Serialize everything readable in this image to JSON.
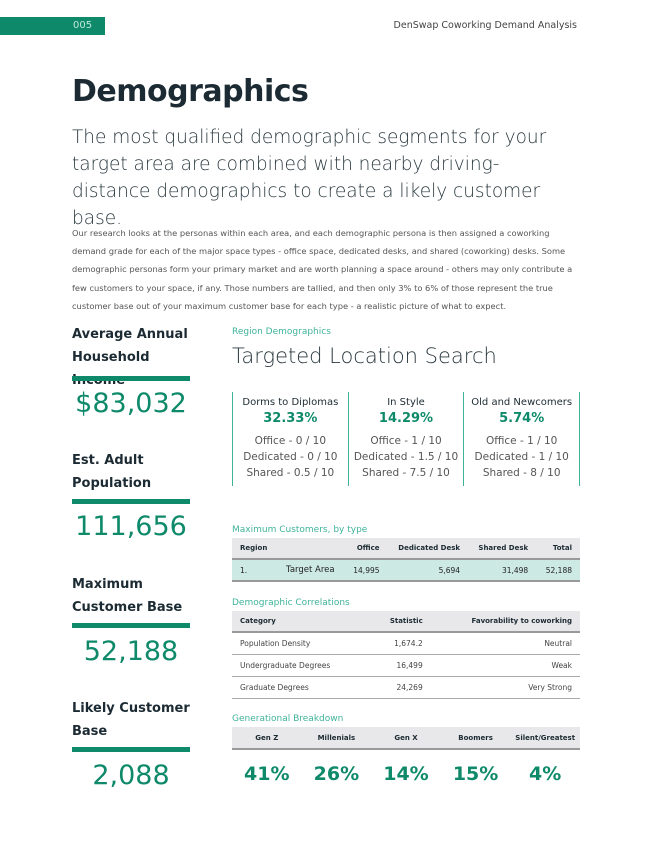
{
  "header": {
    "page_number": "005",
    "doc_title": "DenSwap Coworking Demand Analysis"
  },
  "title": "Demographics",
  "subtitle": "The most qualified demographic segments for your target area are combined with nearby driving-distance demographics to create a likely customer base.",
  "paragraph": "Our research looks at the personas within each area, and each demographic persona is then assigned a coworking demand grade for each of the major space types - office space, dedicated desks, and shared (coworking) desks. Some demographic personas form your primary market and are worth planning a space around - others may only contribute a few customers to your space, if any. Those numbers are tallied, and then only 3% to 6% of those represent the true customer base out of your maximum customer base for each type - a realistic picture of what to expect.",
  "stats": [
    {
      "label": "Average Annual Household Income",
      "value": "$83,032"
    },
    {
      "label": "Est. Adult Population",
      "value": "111,656"
    },
    {
      "label": "Maximum Customer Base",
      "value": "52,188"
    },
    {
      "label": "Likely Customer Base",
      "value": "2,088"
    }
  ],
  "region": {
    "label": "Region Demographics",
    "title": "Targeted Location Search",
    "personas": [
      {
        "name": "Dorms to Diplomas",
        "pct": "32.33%",
        "office": "Office - 0 / 10",
        "dedicated": "Dedicated - 0 / 10",
        "shared": "Shared - 0.5 / 10"
      },
      {
        "name": "In Style",
        "pct": "14.29%",
        "office": "Office - 1 / 10",
        "dedicated": "Dedicated - 1.5 / 10",
        "shared": "Shared - 7.5 / 10"
      },
      {
        "name": "Old and Newcomers",
        "pct": "5.74%",
        "office": "Office - 1 / 10",
        "dedicated": "Dedicated - 1 / 10",
        "shared": "Shared - 8 / 10"
      }
    ]
  },
  "max_customers": {
    "label": "Maximum Customers, by type",
    "headers": [
      "Region",
      "",
      "Office",
      "Dedicated Desk",
      "Shared Desk",
      "Total"
    ],
    "row": [
      "1.",
      "Target Area",
      "14,995",
      "5,694",
      "31,498",
      "52,188"
    ]
  },
  "correlations": {
    "label": "Demographic Correlations",
    "headers": [
      "Category",
      "Statistic",
      "Favorability to coworking"
    ],
    "rows": [
      [
        "Population Density",
        "1,674.2",
        "Neutral"
      ],
      [
        "Undergraduate Degrees",
        "16,499",
        "Weak"
      ],
      [
        "Graduate Degrees",
        "24,269",
        "Very Strong"
      ]
    ]
  },
  "generations": {
    "label": "Generational Breakdown",
    "headers": [
      "Gen Z",
      "Millenials",
      "Gen X",
      "Boomers",
      "Silent/Greatest"
    ],
    "values": [
      "41%",
      "26%",
      "14%",
      "15%",
      "4%"
    ]
  }
}
